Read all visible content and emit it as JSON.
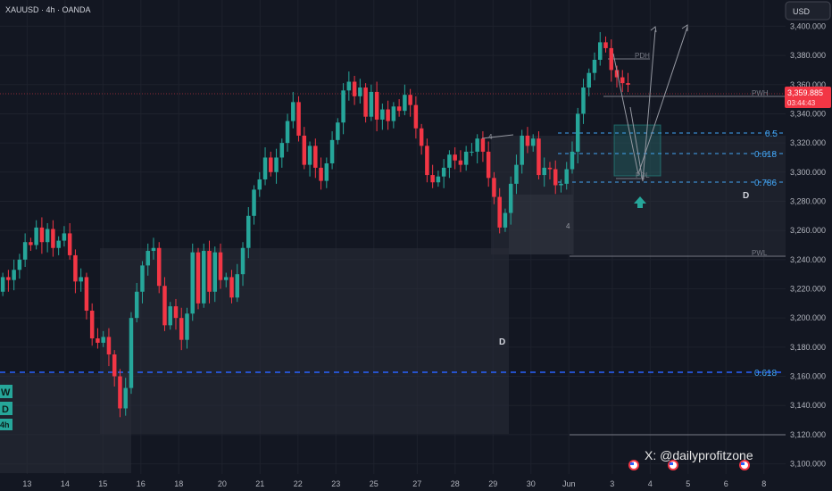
{
  "header": {
    "symbol_label": "XAUUSD · 4h · OANDA",
    "currency_button": "USD"
  },
  "price_badge": {
    "price": "3,359.885",
    "countdown": "03:44:43"
  },
  "watermark": "X: @dailyprofitzone",
  "timeframe_badges": [
    "W",
    "D",
    "4h"
  ],
  "colors": {
    "bull": "#26a69a",
    "bear": "#f23645",
    "accent": "#2962ff",
    "level_blue": "#42a5f5"
  },
  "chart_data": {
    "type": "candlestick",
    "y_axis": {
      "range": [
        3093,
        3418
      ],
      "ticks": [
        "3,400.000",
        "3,380.000",
        "3,360.000",
        "3,340.000",
        "3,320.000",
        "3,300.000",
        "3,280.000",
        "3,260.000",
        "3,240.000",
        "3,220.000",
        "3,200.000",
        "3,180.000",
        "3,160.000",
        "3,140.000",
        "3,120.000",
        "3,100.000"
      ],
      "tick_values": [
        3400,
        3380,
        3360,
        3340,
        3320,
        3300,
        3280,
        3260,
        3240,
        3220,
        3200,
        3180,
        3160,
        3140,
        3120,
        3100
      ]
    },
    "x_axis": {
      "bar_range": [
        0,
        145
      ],
      "labels": [
        {
          "label": "13",
          "bar": 5
        },
        {
          "label": "14",
          "bar": 12
        },
        {
          "label": "15",
          "bar": 19
        },
        {
          "label": "16",
          "bar": 26
        },
        {
          "label": "18",
          "bar": 33
        },
        {
          "label": "20",
          "bar": 41
        },
        {
          "label": "21",
          "bar": 48
        },
        {
          "label": "22",
          "bar": 55
        },
        {
          "label": "23",
          "bar": 62
        },
        {
          "label": "25",
          "bar": 69
        },
        {
          "label": "27",
          "bar": 77
        },
        {
          "label": "28",
          "bar": 84
        },
        {
          "label": "29",
          "bar": 91
        },
        {
          "label": "30",
          "bar": 98
        },
        {
          "label": "Jun",
          "bar": 105
        },
        {
          "label": "3",
          "bar": 113
        },
        {
          "label": "4",
          "bar": 120
        },
        {
          "label": "5",
          "bar": 127
        },
        {
          "label": "6",
          "bar": 134
        },
        {
          "label": "8",
          "bar": 141
        }
      ]
    },
    "series": [
      {
        "close": [
          3228,
          3226,
          3233,
          3240,
          3252,
          3250,
          3262,
          3252,
          3261,
          3248,
          3253,
          3258,
          3243,
          3225,
          3228,
          3205,
          3186,
          3183,
          3187,
          3175,
          3160,
          3138,
          3152,
          3200,
          3218,
          3236,
          3246,
          3248,
          3222,
          3195,
          3208,
          3200,
          3185,
          3203,
          3245,
          3210,
          3246,
          3218,
          3245,
          3226,
          3228,
          3214,
          3230,
          3248,
          3270,
          3288,
          3295,
          3310,
          3300,
          3310,
          3320,
          3335,
          3348,
          3325,
          3305,
          3318,
          3303,
          3294,
          3306,
          3322,
          3334,
          3356,
          3362,
          3352,
          3358,
          3338,
          3355,
          3336,
          3343,
          3335,
          3345,
          3342,
          3353,
          3346,
          3330,
          3318,
          3298,
          3293,
          3297,
          3303,
          3312,
          3308,
          3305,
          3314,
          3314,
          3323,
          3314,
          3296,
          3283,
          3262,
          3272,
          3292,
          3305,
          3325,
          3318,
          3323,
          3298,
          3303,
          3302,
          3291,
          3292,
          3302,
          3314,
          3340,
          3358,
          3368,
          3377,
          3389,
          3385,
          3370,
          3365,
          3361,
          3359.9
        ]
      }
    ],
    "annotations": {
      "levels": [
        {
          "label": "PWH",
          "price": 3358.5
        },
        {
          "label": "0.5",
          "price": 3330.5
        },
        {
          "label": "0.618",
          "price": 3316.5
        },
        {
          "label": "0.786",
          "price": 3296.5
        },
        {
          "label": "PWL",
          "price": 3244.5
        },
        {
          "label": "0.618",
          "price": 3163.5
        }
      ],
      "markers": [
        "PDH",
        "PDL",
        "D",
        "D",
        "4",
        "4"
      ]
    }
  }
}
